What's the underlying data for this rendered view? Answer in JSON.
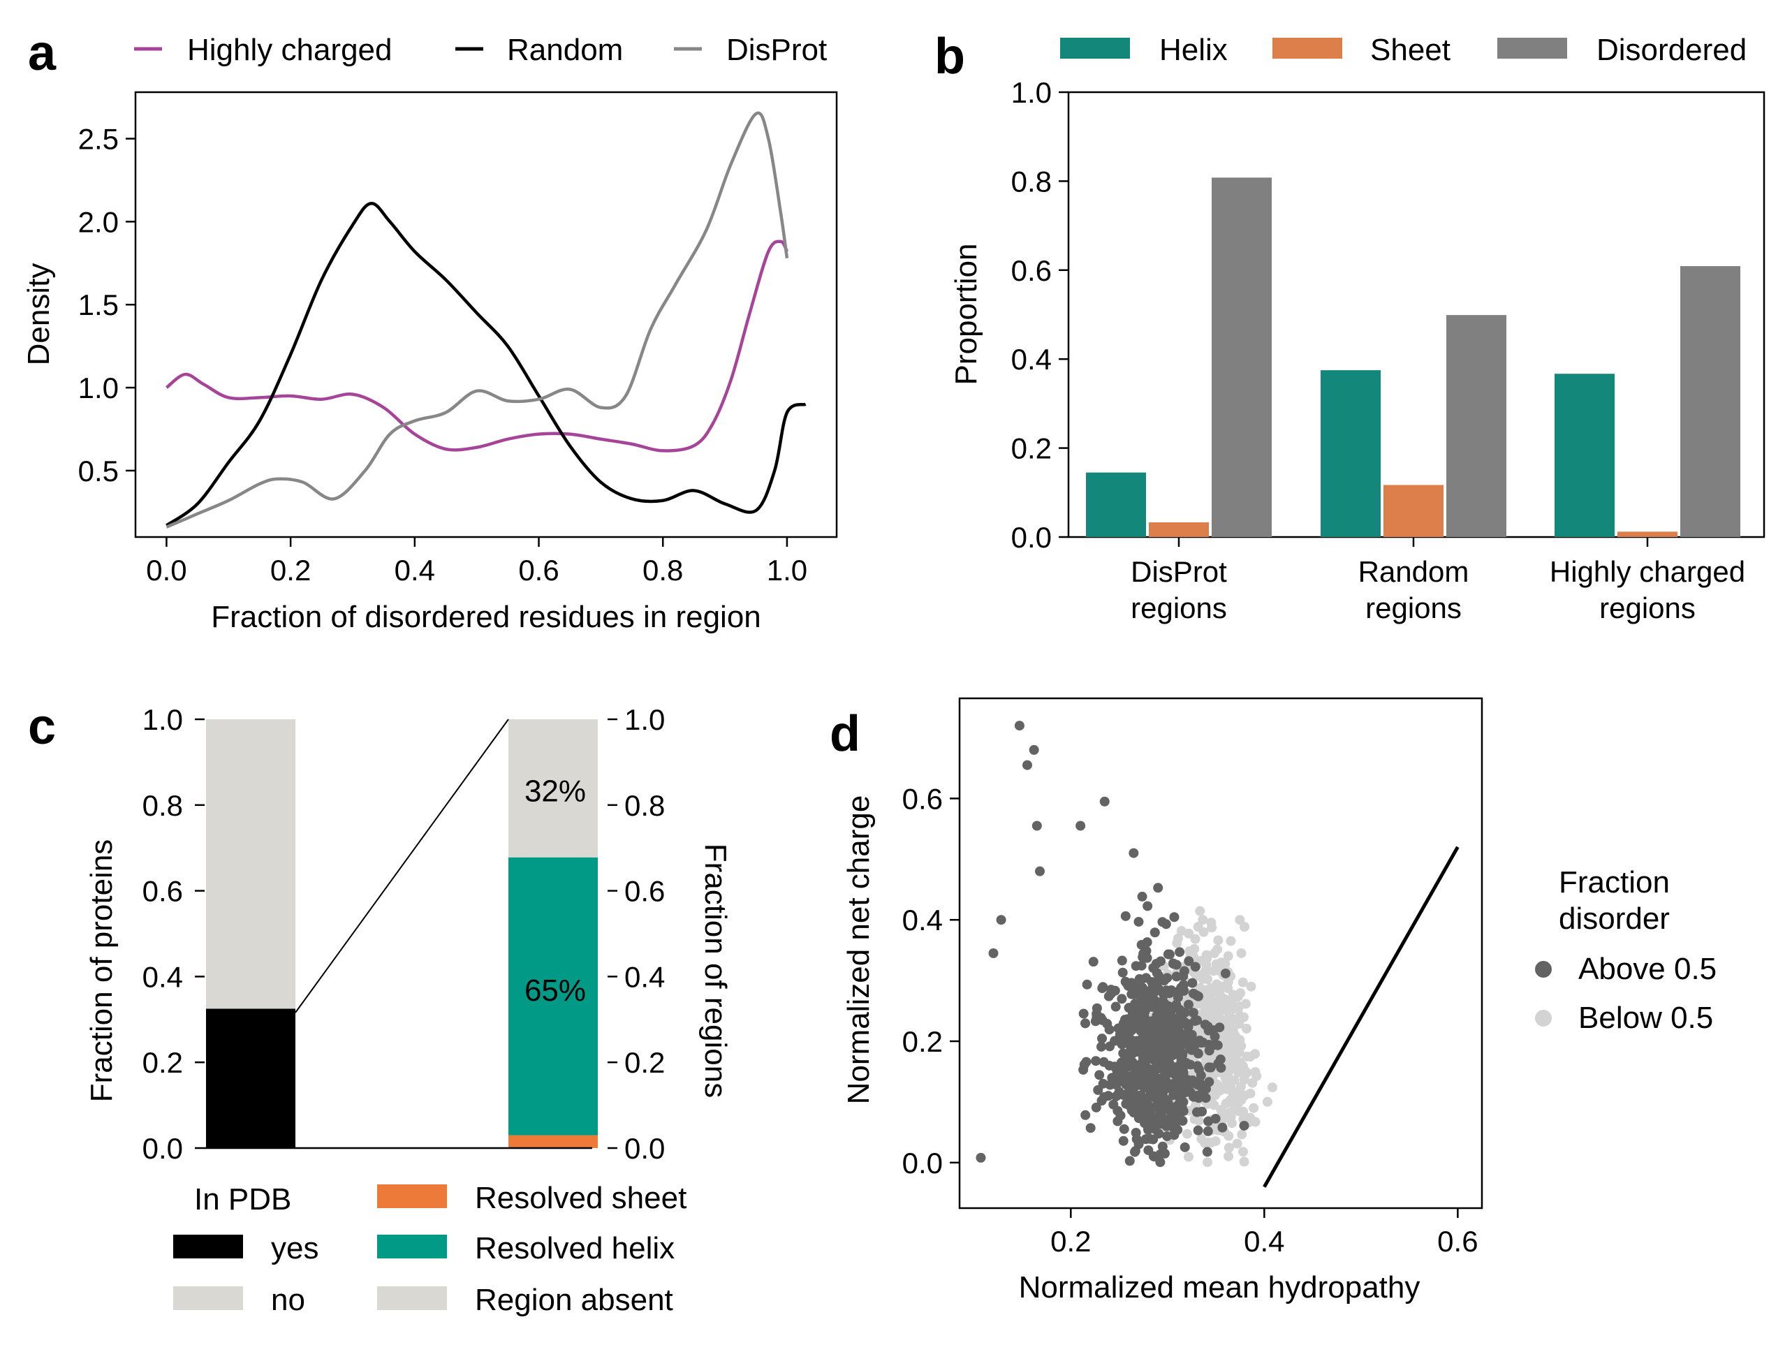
{
  "panels": [
    {
      "letter": "a"
    },
    {
      "letter": "b"
    },
    {
      "letter": "c"
    },
    {
      "letter": "d"
    }
  ],
  "chart_data": [
    {
      "id": "a",
      "type": "line",
      "xlabel": "Fraction of disordered residues in region",
      "ylabel": "Density",
      "xlim": [
        -0.05,
        1.08
      ],
      "ylim": [
        0.1,
        2.78
      ],
      "xticks": [
        "0.0",
        "0.2",
        "0.4",
        "0.6",
        "0.8",
        "1.0"
      ],
      "yticks": [
        "0.5",
        "1.0",
        "1.5",
        "2.0",
        "2.5"
      ],
      "legend_position": "top",
      "series": [
        {
          "name": "Highly charged",
          "color": "#a6449a",
          "x": [
            0,
            0.03,
            0.06,
            0.1,
            0.15,
            0.2,
            0.25,
            0.3,
            0.35,
            0.4,
            0.45,
            0.5,
            0.55,
            0.6,
            0.65,
            0.7,
            0.75,
            0.8,
            0.85,
            0.88,
            0.91,
            0.94,
            0.97,
            0.99,
            1.0
          ],
          "y": [
            1.0,
            1.08,
            1.02,
            0.94,
            0.94,
            0.95,
            0.93,
            0.96,
            0.88,
            0.72,
            0.63,
            0.64,
            0.69,
            0.72,
            0.72,
            0.69,
            0.66,
            0.62,
            0.65,
            0.78,
            1.05,
            1.45,
            1.82,
            1.88,
            1.82
          ]
        },
        {
          "name": "Random",
          "color": "#000000",
          "x": [
            0,
            0.05,
            0.1,
            0.15,
            0.2,
            0.25,
            0.3,
            0.33,
            0.36,
            0.4,
            0.45,
            0.5,
            0.55,
            0.6,
            0.65,
            0.7,
            0.75,
            0.8,
            0.85,
            0.9,
            0.95,
            0.98,
            1.0,
            1.03
          ],
          "y": [
            0.17,
            0.3,
            0.55,
            0.8,
            1.2,
            1.65,
            1.98,
            2.11,
            2.0,
            1.82,
            1.65,
            1.45,
            1.25,
            0.95,
            0.65,
            0.43,
            0.33,
            0.32,
            0.38,
            0.3,
            0.26,
            0.5,
            0.85,
            0.9
          ]
        },
        {
          "name": "DisProt",
          "color": "#878787",
          "x": [
            0,
            0.05,
            0.1,
            0.15,
            0.18,
            0.22,
            0.27,
            0.32,
            0.36,
            0.4,
            0.45,
            0.5,
            0.55,
            0.6,
            0.65,
            0.7,
            0.74,
            0.78,
            0.82,
            0.87,
            0.91,
            0.95,
            0.97,
            0.99,
            1.0
          ],
          "y": [
            0.16,
            0.24,
            0.32,
            0.42,
            0.45,
            0.43,
            0.33,
            0.5,
            0.72,
            0.8,
            0.85,
            0.98,
            0.92,
            0.93,
            0.99,
            0.88,
            0.95,
            1.35,
            1.62,
            1.95,
            2.35,
            2.65,
            2.5,
            2.05,
            1.78
          ]
        }
      ]
    },
    {
      "id": "b",
      "type": "bar",
      "ylabel": "Proportion",
      "ylim": [
        0.0,
        1.0
      ],
      "yticks": [
        "0.0",
        "0.2",
        "0.4",
        "0.6",
        "0.8",
        "1.0"
      ],
      "categories": [
        [
          "DisProt",
          "regions"
        ],
        [
          "Random",
          "regions"
        ],
        [
          "Highly charged",
          "regions"
        ]
      ],
      "legend_position": "top",
      "series": [
        {
          "name": "Helix",
          "color": "#138779",
          "values": [
            0.145,
            0.375,
            0.367
          ]
        },
        {
          "name": "Sheet",
          "color": "#dc7f4b",
          "values": [
            0.033,
            0.117,
            0.012
          ]
        },
        {
          "name": "Disordered",
          "color": "#808080",
          "values": [
            0.808,
            0.499,
            0.609
          ]
        }
      ]
    },
    {
      "id": "c",
      "type": "bar",
      "ylabel_left": "Fraction of proteins",
      "ylabel_right": "Fraction of regions",
      "ylim": [
        0.0,
        1.0
      ],
      "yticks": [
        "0.0",
        "0.2",
        "0.4",
        "0.6",
        "0.8",
        "1.0"
      ],
      "left_bar": [
        {
          "name": "yes",
          "value": 0.325,
          "color": "#000000"
        },
        {
          "name": "no",
          "value": 0.675,
          "color": "#dad8d2"
        }
      ],
      "right_bar": [
        {
          "name": "Resolved sheet",
          "value": 0.03,
          "color": "#ee7a3a"
        },
        {
          "name": "Resolved helix",
          "value": 0.648,
          "color": "#009a87",
          "label": "65%"
        },
        {
          "name": "Region absent",
          "value": 0.322,
          "color": "#dad8d2",
          "label": "32%"
        }
      ],
      "legend_title": "In PDB",
      "legend_left": [
        {
          "name": "yes",
          "color": "#000000"
        },
        {
          "name": "no",
          "color": "#dad8d2"
        }
      ],
      "legend_right": [
        {
          "name": "Resolved sheet",
          "color": "#ee7a3a"
        },
        {
          "name": "Resolved helix",
          "color": "#009a87"
        },
        {
          "name": "Region absent",
          "color": "#dad8d2"
        }
      ]
    },
    {
      "id": "d",
      "type": "scatter",
      "xlabel": "Normalized mean hydropathy",
      "ylabel": "Normalized net charge",
      "xlim": [
        0.085,
        0.625
      ],
      "ylim": [
        -0.075,
        0.765
      ],
      "xticks": [
        "0.2",
        "0.4",
        "0.6"
      ],
      "yticks": [
        "0.0",
        "0.2",
        "0.4",
        "0.6"
      ],
      "line": {
        "x": [
          0.4,
          0.6
        ],
        "y": [
          -0.04,
          0.52
        ]
      },
      "legend_title": [
        "Fraction",
        "disorder"
      ],
      "series": [
        {
          "name": "Above 0.5",
          "color": "#636363"
        },
        {
          "name": "Below 0.5",
          "color": "#d3d3d3"
        }
      ]
    }
  ]
}
